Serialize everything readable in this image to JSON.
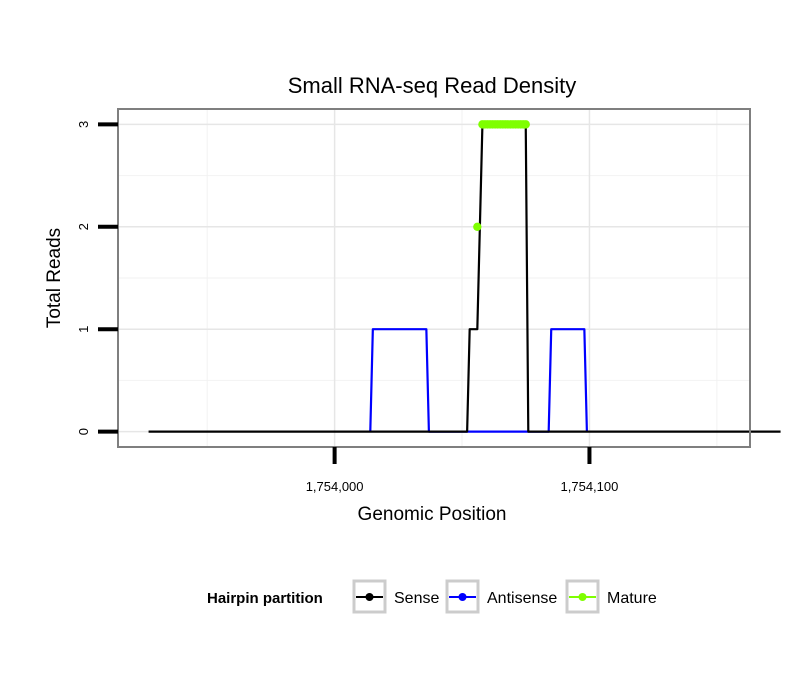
{
  "chart_data": {
    "type": "line",
    "title": "Small RNA-seq Read Density",
    "xlabel": "Genomic Position",
    "ylabel": "Total Reads",
    "xlim": [
      1753915,
      1754163
    ],
    "ylim": [
      -0.15,
      3.15
    ],
    "x_ticks": [
      {
        "value": 1754000,
        "label": "1,754,000"
      },
      {
        "value": 1754100,
        "label": "1,754,100"
      }
    ],
    "y_ticks": [
      {
        "value": 0,
        "label": "0"
      },
      {
        "value": 1,
        "label": "1"
      },
      {
        "value": 2,
        "label": "2"
      },
      {
        "value": 3,
        "label": "3"
      }
    ],
    "x_minor_grid": [
      1753950,
      1754050,
      1754150
    ],
    "y_minor_grid": [
      0.5,
      1.5,
      2.5
    ],
    "legend": {
      "title": "Hairpin partition",
      "position": "bottom",
      "items": [
        {
          "name": "Sense",
          "color": "#000000"
        },
        {
          "name": "Antisense",
          "color": "#0000ff"
        },
        {
          "name": "Mature",
          "color": "#7fff00"
        }
      ]
    },
    "series": [
      {
        "name": "Sense",
        "color": "#000000",
        "points": [
          [
            1753927,
            0
          ],
          [
            1754052,
            0
          ],
          [
            1754053,
            1
          ],
          [
            1754056,
            1
          ],
          [
            1754057,
            2
          ],
          [
            1754058,
            3
          ],
          [
            1754075,
            3
          ],
          [
            1754076,
            0
          ],
          [
            1754175,
            0
          ]
        ]
      },
      {
        "name": "Antisense",
        "color": "#0000ff",
        "points": [
          [
            1754014,
            0
          ],
          [
            1754015,
            1
          ],
          [
            1754036,
            1
          ],
          [
            1754037,
            0
          ],
          [
            1754076,
            0
          ],
          [
            1754084,
            0
          ],
          [
            1754085,
            1
          ],
          [
            1754098,
            1
          ],
          [
            1754099,
            0
          ]
        ]
      },
      {
        "name": "Mature",
        "color": "#7fff00",
        "points": [
          [
            1754056,
            2
          ],
          [
            1754058,
            3
          ],
          [
            1754059,
            3
          ],
          [
            1754060,
            3
          ],
          [
            1754061,
            3
          ],
          [
            1754062,
            3
          ],
          [
            1754063,
            3
          ],
          [
            1754064,
            3
          ],
          [
            1754065,
            3
          ],
          [
            1754066,
            3
          ],
          [
            1754067,
            3
          ],
          [
            1754068,
            3
          ],
          [
            1754069,
            3
          ],
          [
            1754070,
            3
          ],
          [
            1754071,
            3
          ],
          [
            1754072,
            3
          ],
          [
            1754073,
            3
          ],
          [
            1754074,
            3
          ],
          [
            1754075,
            3
          ]
        ]
      }
    ]
  }
}
